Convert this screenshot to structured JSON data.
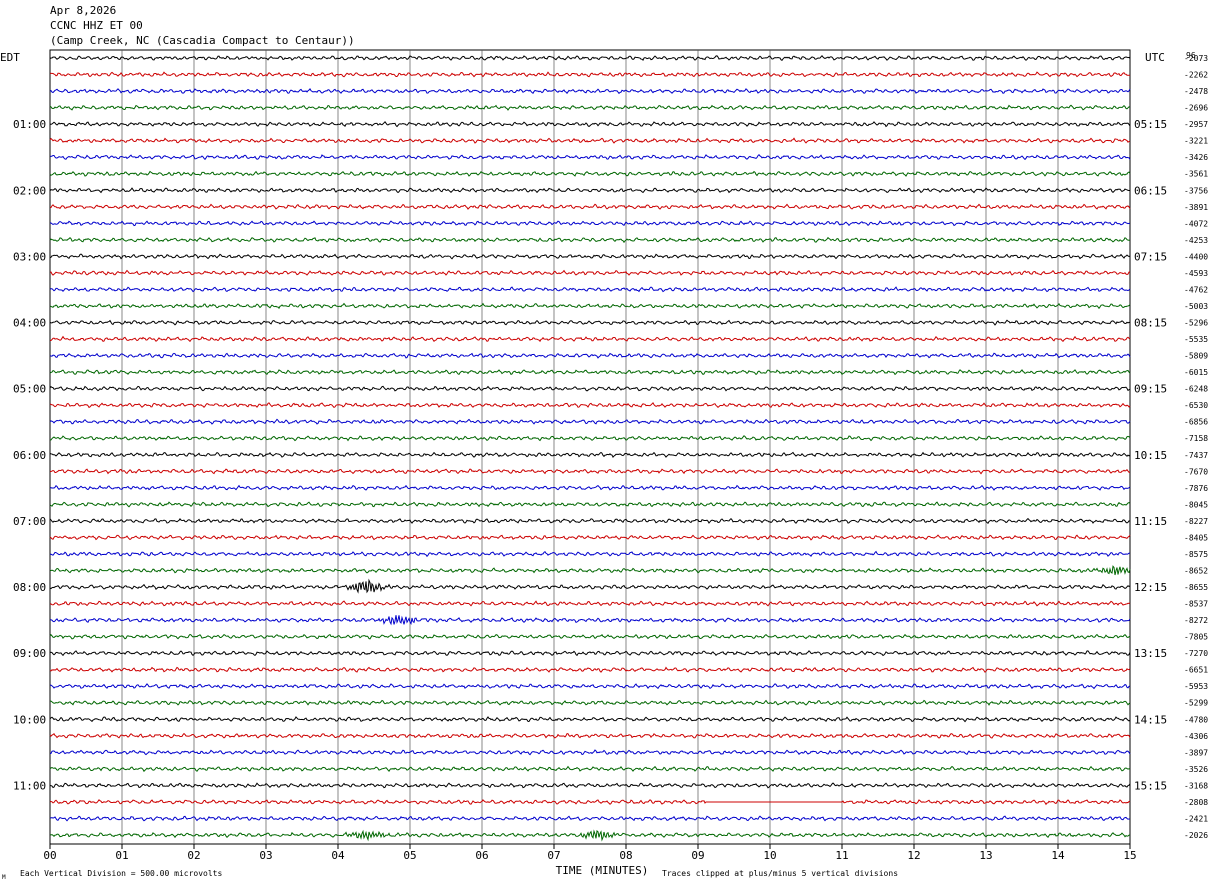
{
  "header": {
    "date": "Apr 8,2026",
    "channel": "CCNC HHZ ET 00",
    "station": "(Camp Creek, NC (Cascadia Compact to Centaur))"
  },
  "chart_data": {
    "type": "line",
    "title": "",
    "left_timezone_label": "EDT",
    "right_timezone_label": "UTC",
    "corner_code": "96",
    "x_axis": {
      "label": "TIME (MINUTES)",
      "ticks": [
        "00",
        "01",
        "02",
        "03",
        "04",
        "05",
        "06",
        "07",
        "08",
        "09",
        "10",
        "11",
        "12",
        "13",
        "14",
        "15"
      ],
      "range": [
        0,
        15
      ]
    },
    "left_hour_labels": [
      "01:00",
      "02:00",
      "03:00",
      "04:00",
      "05:00",
      "06:00",
      "07:00",
      "08:00",
      "09:00",
      "10:00",
      "11:00"
    ],
    "right_hour_labels": [
      "05:15",
      "06:15",
      "07:15",
      "08:15",
      "09:15",
      "10:15",
      "11:15",
      "12:15",
      "13:15",
      "14:15",
      "15:15"
    ],
    "trace_offsets": [
      "-2073",
      "-2262",
      "-2478",
      "-2696",
      "-2957",
      "-3221",
      "-3426",
      "-3561",
      "-3756",
      "-3891",
      "-4072",
      "-4253",
      "-4400",
      "-4593",
      "-4762",
      "-5003",
      "-5296",
      "-5535",
      "-5809",
      "-6015",
      "-6248",
      "-6530",
      "-6856",
      "-7158",
      "-7437",
      "-7670",
      "-7876",
      "-8045",
      "-8227",
      "-8405",
      "-8575",
      "-8652",
      "-8655",
      "-8537",
      "-8272",
      "-7805",
      "-7270",
      "-6651",
      "-5953",
      "-5299",
      "-4780",
      "-4306",
      "-3897",
      "-3526",
      "-3168",
      "-2808",
      "-2421",
      "-2026"
    ],
    "trace_colors": [
      "#000000",
      "#cc0000",
      "#0000cc",
      "#006600"
    ],
    "events": [
      {
        "trace": 32,
        "minute": 4.4,
        "amplitude": 6
      },
      {
        "trace": 34,
        "minute": 4.85,
        "amplitude": 5
      },
      {
        "trace": 31,
        "minute": 14.8,
        "amplitude": 4
      },
      {
        "trace": 47,
        "minute": 4.4,
        "amplitude": 4
      },
      {
        "trace": 47,
        "minute": 7.6,
        "amplitude": 4
      }
    ],
    "clipped_segment": {
      "trace": 45,
      "from_minute": 9.1,
      "to_minute": 11.0
    },
    "grid": true
  },
  "footer": {
    "scale_note": "Each Vertical Division =  500.00 microvolts",
    "clip_note": "Traces clipped at plus/minus 5 vertical divisions",
    "corner_mark": "M"
  }
}
